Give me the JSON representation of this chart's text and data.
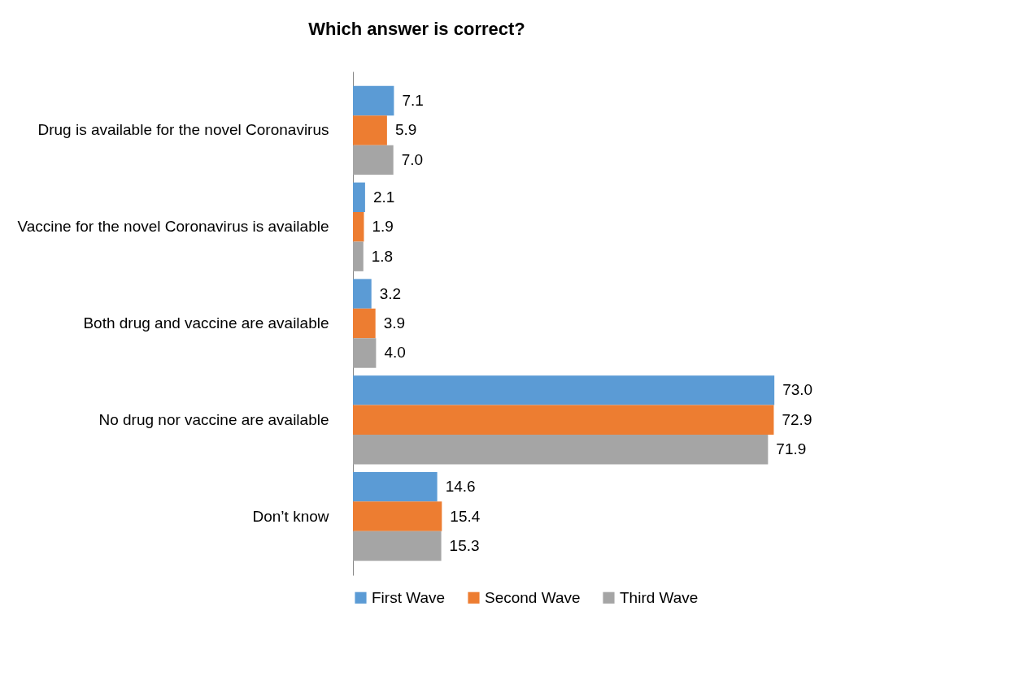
{
  "chart_data": {
    "type": "bar",
    "orientation": "horizontal",
    "title": "Which answer is correct?",
    "categories": [
      "Drug is available for the novel Coronavirus",
      "Vaccine for the novel Coronavirus is available",
      "Both drug and vaccine are available",
      "No drug nor vaccine are available",
      "Don’t know"
    ],
    "series": [
      {
        "name": "First Wave",
        "color": "#5b9bd5",
        "values": [
          7.1,
          2.1,
          3.2,
          73.0,
          14.6
        ],
        "value_labels": [
          "7.1",
          "2.1",
          "3.2",
          "73.0",
          "14.6"
        ]
      },
      {
        "name": "Second Wave",
        "color": "#ed7d31",
        "values": [
          5.9,
          1.9,
          3.9,
          72.9,
          15.4
        ],
        "value_labels": [
          "5.9",
          "1.9",
          "3.9",
          "72.9",
          "15.4"
        ]
      },
      {
        "name": "Third Wave",
        "color": "#a5a5a5",
        "values": [
          7.0,
          1.8,
          4.0,
          71.9,
          15.3
        ],
        "value_labels": [
          "7.0",
          "1.8",
          "4.0",
          "71.9",
          "15.3"
        ]
      }
    ],
    "legend": "bottom"
  }
}
